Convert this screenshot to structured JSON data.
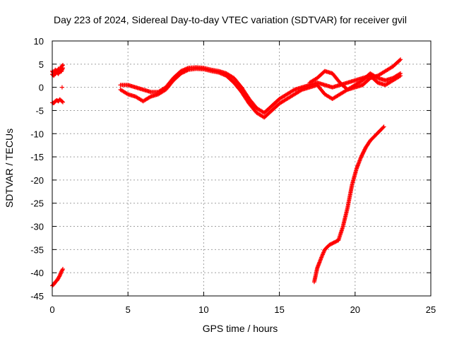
{
  "chart_data": {
    "type": "scatter",
    "title": "Day 223 of 2024, Sidereal Day-to-day VTEC variation (SDTVAR) for receiver gvil",
    "xlabel": "GPS time / hours",
    "ylabel": "SDTVAR / TECUs",
    "xlim": [
      0,
      25
    ],
    "ylim": [
      -45,
      10
    ],
    "xticks": [
      "0",
      "5",
      "10",
      "15",
      "20",
      "25"
    ],
    "yticks": [
      "10",
      "5",
      "0",
      "-5",
      "-10",
      "-15",
      "-20",
      "-25",
      "-30",
      "-35",
      "-40",
      "-45"
    ],
    "grid": true,
    "marker": "+",
    "series_color": "#ff0000",
    "series": [
      {
        "x": [
          0.0,
          0.1,
          0.2,
          0.3,
          0.4,
          0.5,
          0.6,
          0.7
        ],
        "y": [
          3.5,
          3.0,
          3.8,
          3.2,
          4.0,
          3.5,
          4.5,
          4.8
        ]
      },
      {
        "x": [
          0.0,
          0.1,
          0.2,
          0.3,
          0.4,
          0.5,
          0.6,
          0.7
        ],
        "y": [
          2.8,
          2.5,
          3.0,
          3.3,
          2.9,
          3.6,
          3.4,
          4.2
        ]
      },
      {
        "x": [
          0.0,
          0.1,
          0.2,
          0.3,
          0.4,
          0.5,
          0.6,
          0.7
        ],
        "y": [
          -3.3,
          -3.4,
          -3.0,
          -2.8,
          -3.0,
          -2.6,
          -2.9,
          -3.2
        ]
      },
      {
        "x": [
          0.65
        ],
        "y": [
          0.0
        ]
      },
      {
        "x": [
          0.0,
          0.1,
          0.2,
          0.3,
          0.4,
          0.5,
          0.6,
          0.7
        ],
        "y": [
          -42.8,
          -42.5,
          -42.0,
          -41.7,
          -41.2,
          -40.6,
          -39.8,
          -39.2
        ]
      },
      {
        "x": [
          4.5,
          5.0,
          5.5,
          6.0,
          6.5,
          7.0,
          7.5,
          8.0,
          8.5,
          9.0,
          9.5,
          10.0,
          10.5,
          11.0,
          11.5,
          12.0,
          12.5,
          13.0,
          13.5,
          14.0,
          14.5,
          15.0,
          15.5,
          16.0,
          16.5,
          17.0,
          17.5,
          18.0,
          18.5,
          19.0,
          19.5,
          20.0,
          20.5,
          21.0,
          21.5,
          22.0,
          22.5,
          23.0
        ],
        "y": [
          0.5,
          0.5,
          0.0,
          -0.5,
          -1.0,
          -1.0,
          0.0,
          2.0,
          3.5,
          4.2,
          4.3,
          4.2,
          3.8,
          3.5,
          3.0,
          2.0,
          0.0,
          -2.5,
          -4.5,
          -5.5,
          -4.0,
          -2.5,
          -1.5,
          -0.5,
          0.0,
          0.5,
          1.0,
          0.5,
          0.0,
          0.5,
          1.0,
          1.5,
          2.0,
          2.5,
          1.0,
          0.5,
          1.5,
          2.5
        ]
      },
      {
        "x": [
          4.5,
          5.0,
          5.5,
          6.0,
          6.5,
          7.0,
          7.5,
          8.0,
          8.5,
          9.0,
          9.5,
          10.0,
          10.5,
          11.0,
          11.5,
          12.0,
          12.5,
          13.0,
          13.5,
          14.0,
          14.5,
          15.0,
          15.5,
          16.0,
          16.5,
          17.0,
          17.5,
          18.0,
          18.5,
          19.0,
          19.5,
          20.0,
          20.5,
          21.0,
          21.5,
          22.0,
          22.5,
          23.0
        ],
        "y": [
          -0.5,
          -1.5,
          -2.0,
          -3.0,
          -2.0,
          -1.5,
          -0.5,
          1.5,
          3.0,
          3.8,
          4.0,
          3.9,
          3.5,
          3.2,
          2.5,
          1.0,
          -1.0,
          -3.5,
          -5.5,
          -6.5,
          -5.0,
          -3.5,
          -2.5,
          -1.5,
          -0.5,
          0.0,
          0.5,
          -1.5,
          -2.5,
          -1.5,
          -0.5,
          0.5,
          1.5,
          3.0,
          2.0,
          1.5,
          2.0,
          3.0
        ]
      },
      {
        "x": [
          17.0,
          17.5,
          18.0,
          18.5,
          19.0,
          19.5,
          20.0,
          20.5,
          21.0,
          21.5,
          22.0,
          22.5,
          23.0
        ],
        "y": [
          1.0,
          2.0,
          3.5,
          3.0,
          1.0,
          -0.5,
          0.0,
          0.5,
          2.0,
          2.5,
          3.5,
          4.5,
          6.0
        ]
      },
      {
        "x": [
          17.3,
          17.5,
          17.8,
          18.0,
          18.3,
          18.6,
          18.9,
          19.2,
          19.5,
          19.8,
          20.1,
          20.4,
          20.7,
          21.0,
          21.3,
          21.6,
          21.9
        ],
        "y": [
          -42.0,
          -39.0,
          -36.5,
          -35.0,
          -34.0,
          -33.5,
          -33.0,
          -30.0,
          -26.0,
          -21.0,
          -17.5,
          -15.0,
          -13.0,
          -11.5,
          -10.5,
          -9.5,
          -8.5
        ]
      }
    ]
  }
}
